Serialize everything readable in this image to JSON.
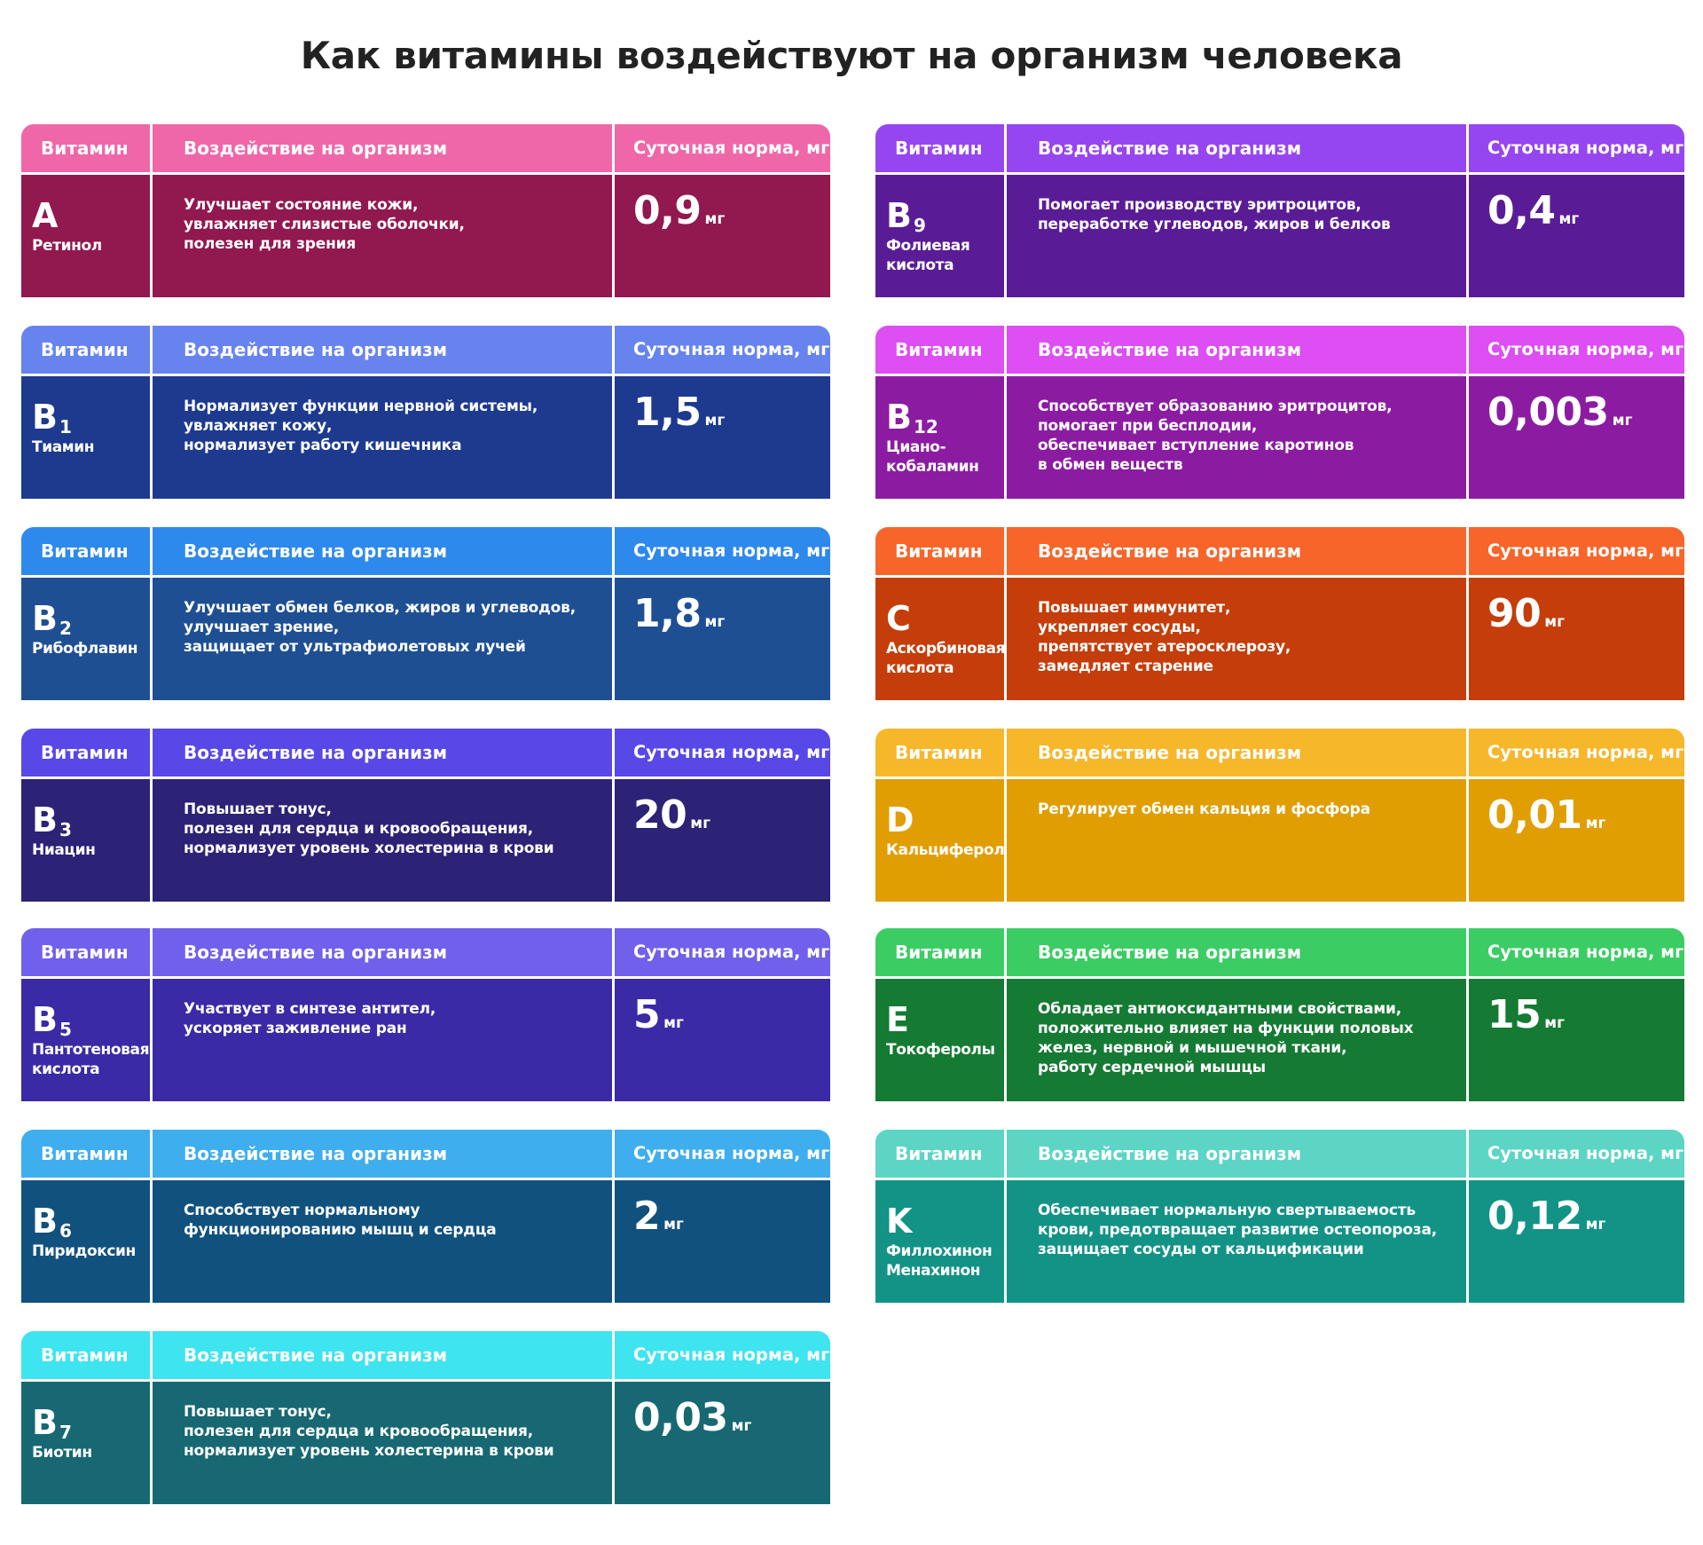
{
  "title": "Как витамины воздействуют на организм человека",
  "header": {
    "vitamin": "Витамин",
    "effect": "Воздействие на организм",
    "norm": "Суточная норма, мг"
  },
  "unit": "мг",
  "cards": [
    {
      "letter": "A",
      "sub": "",
      "name": "Ретинол",
      "effect": "Улучшает состояние кожи,\nувлажняет слизистые оболочки,\nполезен для зрения",
      "norm": "0,9",
      "header_color": "#ef67a9",
      "body_color": "#91194f"
    },
    {
      "letter": "B",
      "sub": "1",
      "name": "Тиамин",
      "effect": "Нормализует функции нервной системы,\nувлажняет кожу,\nнормализует работу кишечника",
      "norm": "1,5",
      "header_color": "#6784ee",
      "body_color": "#1d3a8f"
    },
    {
      "letter": "B",
      "sub": "2",
      "name": "Рибофлавин",
      "effect": "Улучшает обмен белков, жиров и углеводов,\nулучшает зрение,\nзащищает от ультрафиолетовых лучей",
      "norm": "1,8",
      "header_color": "#2e89ec",
      "body_color": "#1f4f93"
    },
    {
      "letter": "B",
      "sub": "3",
      "name": "Ниацин",
      "effect": "Повышает тонус,\nполезен для сердца и кровообращения,\nнормализует уровень холестерина в крови",
      "norm": "20",
      "header_color": "#5848e8",
      "body_color": "#2c2276"
    },
    {
      "letter": "B",
      "sub": "5",
      "name": "Пантотеновая\nкислота",
      "effect": "Участвует в синтезе антител,\nускоряет заживление ран",
      "norm": "5",
      "header_color": "#7160ec",
      "body_color": "#3a2aa6"
    },
    {
      "letter": "B",
      "sub": "6",
      "name": "Пиридоксин",
      "effect": "Способствует нормальному\nфункционированию мышц и сердца",
      "norm": "2",
      "header_color": "#3faeee",
      "body_color": "#11517e"
    },
    {
      "letter": "B",
      "sub": "7",
      "name": "Биотин",
      "effect": "Повышает тонус,\nполезен для сердца и кровообращения,\nнормализует уровень холестерина в крови",
      "norm": "0,03",
      "header_color": "#3ee4f0",
      "body_color": "#176872"
    },
    {
      "letter": "B",
      "sub": "9",
      "name": "Фолиевая\nкислота",
      "effect": "Помогает производству эритроцитов,\nпереработке углеводов, жиров и белков",
      "norm": "0,4",
      "header_color": "#9646f0",
      "body_color": "#5a1c96"
    },
    {
      "letter": "B",
      "sub": "12",
      "name": "Циано-\nкобаламин",
      "effect": "Способствует образованию эритроцитов,\nпомогает при бесплодии,\nобеспечивает вступление каротинов\nв обмен веществ",
      "norm": "0,003",
      "header_color": "#dd4ef3",
      "body_color": "#8b1ca2"
    },
    {
      "letter": "C",
      "sub": "",
      "name": "Аскорбиновая\nкислота",
      "effect": "Повышает иммунитет,\nукрепляет сосуды,\nпрепятствует атеросклерозу,\nзамедляет старение",
      "norm": "90",
      "header_color": "#f8652a",
      "body_color": "#c43d0a"
    },
    {
      "letter": "D",
      "sub": "",
      "name": "Кальциферол",
      "effect": "Регулирует обмен кальция и фосфора",
      "norm": "0,01",
      "header_color": "#f6b72b",
      "body_color": "#e09e02"
    },
    {
      "letter": "E",
      "sub": "",
      "name": "Токоферолы",
      "effect": "Обладает антиоксидантными свойствами,\nположительно влияет на функции половых\nжелез, нервной и мышечной ткани,\nработу сердечной мышцы",
      "norm": "15",
      "header_color": "#3bcd64",
      "body_color": "#157a33"
    },
    {
      "letter": "K",
      "sub": "",
      "name": "Филлохинон\nМенахинон",
      "effect": "Обеспечивает нормальную свертываемость\nкрови, предотвращает развитие остеопороза,\nзащищает сосуды от кальцификации",
      "norm": "0,12",
      "header_color": "#5cd5c5",
      "body_color": "#129386"
    }
  ]
}
